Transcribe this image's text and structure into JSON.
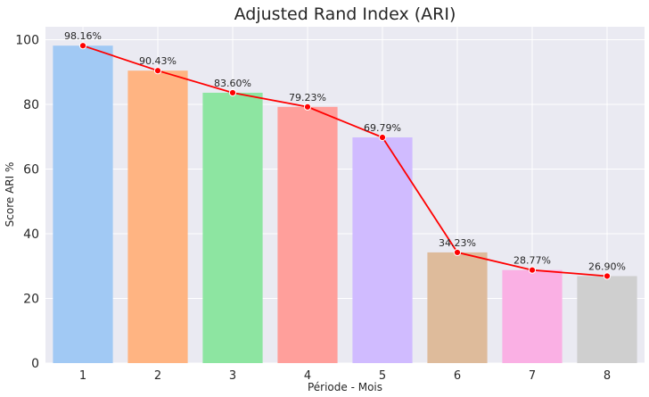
{
  "chart_data": {
    "type": "bar",
    "title": "Adjusted Rand Index (ARI)",
    "xlabel": "Période - Mois",
    "ylabel": "Score ARI %",
    "categories": [
      "1",
      "2",
      "3",
      "4",
      "5",
      "6",
      "7",
      "8"
    ],
    "values": [
      98.16,
      90.43,
      83.6,
      79.23,
      69.79,
      34.23,
      28.77,
      26.9
    ],
    "data_labels": [
      "98.16%",
      "90.43%",
      "83.60%",
      "79.23%",
      "69.79%",
      "34.23%",
      "28.77%",
      "26.90%"
    ],
    "bar_colors": [
      "#a1c9f4",
      "#ffb482",
      "#8de5a1",
      "#ff9f9b",
      "#d0bbff",
      "#debb9b",
      "#fab0e4",
      "#cfcfcf"
    ],
    "line_overlay": {
      "color": "#ff0000",
      "marker": "circle"
    },
    "yticks": [
      0,
      20,
      40,
      60,
      80,
      100
    ],
    "ylim": [
      0,
      104
    ],
    "grid": true,
    "background": "#eaeaf2"
  }
}
